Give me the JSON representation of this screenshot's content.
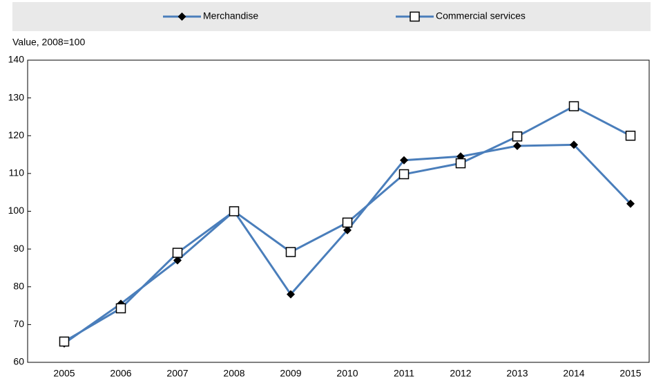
{
  "chart_data": {
    "type": "line",
    "y_label": "Value, 2008=100",
    "categories": [
      "2005",
      "2006",
      "2007",
      "2008",
      "2009",
      "2010",
      "2011",
      "2012",
      "2013",
      "2014",
      "2015"
    ],
    "series": [
      {
        "name": "Merchandise",
        "color": "#4a7ebb",
        "marker": "diamond",
        "values": [
          65,
          75.5,
          87,
          100,
          78,
          95,
          113.5,
          114.5,
          117.3,
          117.6,
          102
        ]
      },
      {
        "name": "Commercial services",
        "color": "#4a7ebb",
        "marker": "square",
        "values": [
          65.5,
          74.3,
          89,
          100,
          89.2,
          97,
          109.8,
          112.7,
          119.8,
          127.8,
          120
        ]
      }
    ],
    "ylim": [
      60,
      140
    ],
    "yticks": [
      60,
      70,
      80,
      90,
      100,
      110,
      120,
      130,
      140
    ],
    "grid": false
  }
}
